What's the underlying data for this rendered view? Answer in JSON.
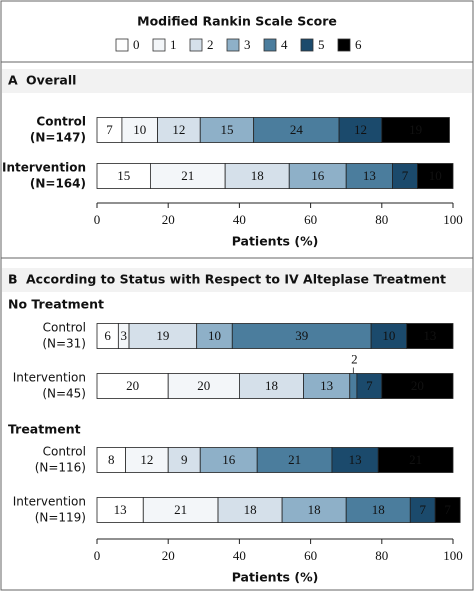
{
  "chart_data": [
    {
      "type": "bar",
      "orientation": "horizontal",
      "stacked": true,
      "legend_title": "Modified Rankin Scale Score",
      "panel": "A",
      "title": "Overall",
      "categories": [
        "Control",
        "Intervention"
      ],
      "category_notes": [
        "(N=147)",
        "(N=164)"
      ],
      "series": [
        {
          "name": "0",
          "color": "#ffffff",
          "values": [
            7,
            15
          ]
        },
        {
          "name": "1",
          "color": "#f3f6f9",
          "values": [
            10,
            21
          ]
        },
        {
          "name": "2",
          "color": "#d5e0ea",
          "values": [
            12,
            18
          ]
        },
        {
          "name": "3",
          "color": "#8eb0c8",
          "values": [
            15,
            16
          ]
        },
        {
          "name": "4",
          "color": "#4b7d9d",
          "values": [
            24,
            13
          ]
        },
        {
          "name": "5",
          "color": "#1b4a6c",
          "values": [
            12,
            7
          ]
        },
        {
          "name": "6",
          "color": "#000000",
          "values": [
            19,
            10
          ]
        }
      ],
      "xlabel": "Patients (%)",
      "xlim": [
        0,
        100
      ],
      "xticks": [
        0,
        20,
        40,
        60,
        80,
        100
      ]
    },
    {
      "type": "bar",
      "orientation": "horizontal",
      "stacked": true,
      "panel": "B",
      "title": "According to Status with Respect to IV Alteplase Treatment",
      "group_labels": [
        "No Treatment",
        "Treatment"
      ],
      "categories": [
        "Control",
        "Intervention",
        "Control",
        "Intervention"
      ],
      "category_notes": [
        "(N=31)",
        "(N=45)",
        "(N=116)",
        "(N=119)"
      ],
      "series": [
        {
          "name": "0",
          "color": "#ffffff",
          "values": [
            6,
            20,
            8,
            13
          ]
        },
        {
          "name": "1",
          "color": "#f3f6f9",
          "values": [
            3,
            20,
            12,
            21
          ]
        },
        {
          "name": "2",
          "color": "#d5e0ea",
          "values": [
            19,
            18,
            9,
            18
          ]
        },
        {
          "name": "3",
          "color": "#8eb0c8",
          "values": [
            10,
            13,
            16,
            18
          ]
        },
        {
          "name": "4",
          "color": "#4b7d9d",
          "values": [
            39,
            2,
            21,
            18
          ]
        },
        {
          "name": "5",
          "color": "#1b4a6c",
          "values": [
            10,
            7,
            13,
            7
          ]
        },
        {
          "name": "6",
          "color": "#000000",
          "values": [
            13,
            20,
            21,
            7
          ]
        }
      ],
      "xlabel": "Patients (%)",
      "xlim": [
        0,
        100
      ],
      "xticks": [
        0,
        20,
        40,
        60,
        80,
        100
      ]
    }
  ]
}
